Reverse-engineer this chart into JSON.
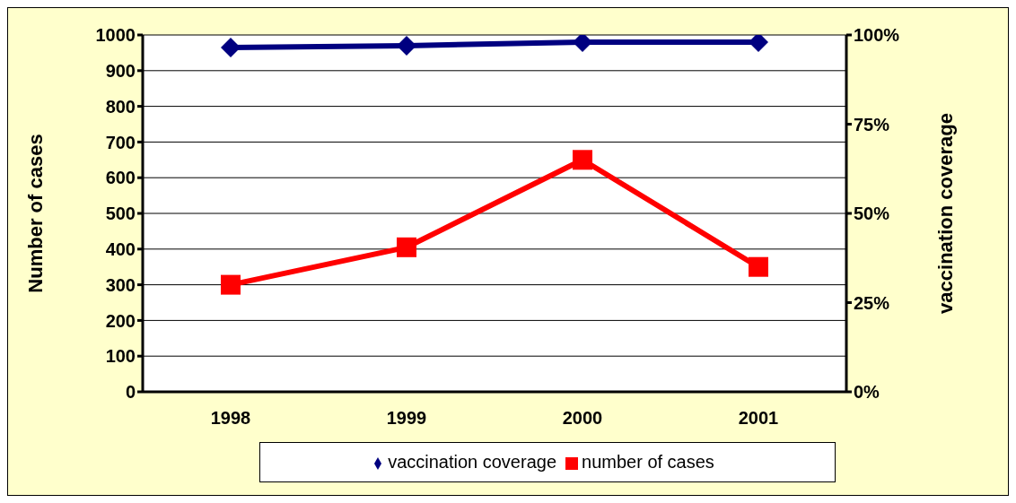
{
  "chart_data": {
    "type": "line",
    "categories": [
      "1998",
      "1999",
      "2000",
      "2001"
    ],
    "ylabel": "Number of cases",
    "y2label": "vaccination coverage",
    "series": [
      {
        "name": "vaccination coverage",
        "color": "#000080",
        "values": [
          96.5,
          97,
          98,
          98
        ],
        "axis": "y2",
        "marker": "diamond"
      },
      {
        "name": "number of cases",
        "color": "#ff0000",
        "values": [
          300,
          405,
          650,
          350
        ],
        "marker": "square"
      }
    ],
    "ylim": [
      0,
      1000
    ],
    "yticks": [
      0,
      100,
      200,
      300,
      400,
      500,
      600,
      700,
      800,
      900,
      1000
    ],
    "y2lim": [
      0,
      100
    ],
    "y2ticks": [
      {
        "value": 0,
        "label": "0%"
      },
      {
        "value": 25,
        "label": "25%"
      },
      {
        "value": 50,
        "label": "50%"
      },
      {
        "value": 75,
        "label": "75%"
      },
      {
        "value": 100,
        "label": "100%"
      }
    ],
    "grid": "y",
    "legend": "bottom",
    "line_style": "solid"
  }
}
